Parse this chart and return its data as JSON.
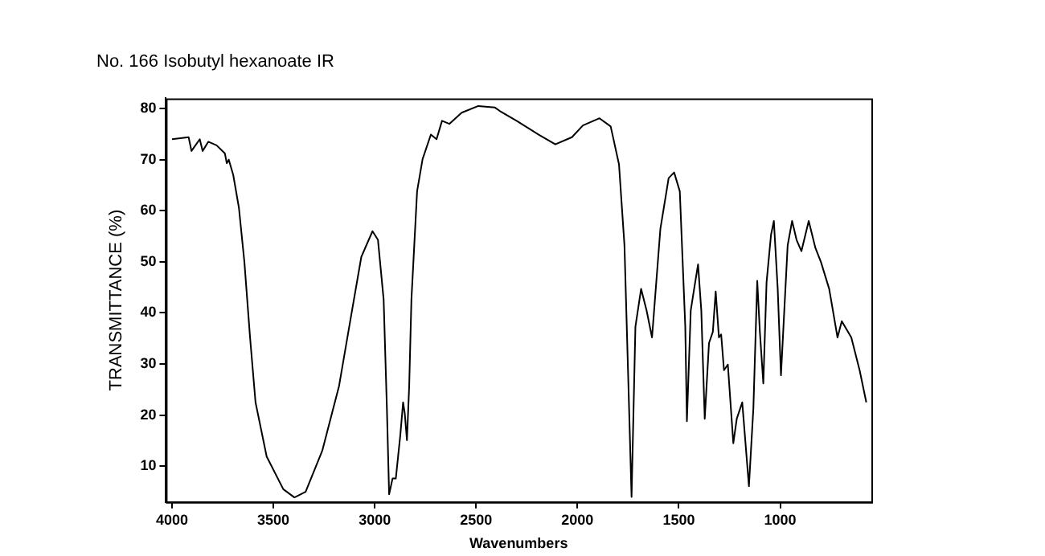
{
  "chart_data": {
    "type": "line",
    "title": "No. 166 Isobutyl hexanoate IR",
    "xlabel": "Wavenumbers",
    "ylabel": "TRANSMITTANCE (%)",
    "xlim": [
      4030,
      550
    ],
    "xticks": [
      4000,
      3500,
      3000,
      2500,
      2000,
      1500,
      1000
    ],
    "ylim": [
      3,
      82
    ],
    "yticks": [
      10,
      20,
      30,
      40,
      50,
      60,
      70,
      80
    ],
    "grid": false,
    "legend": false,
    "marker": "none",
    "line_style": "solid",
    "series": [
      {
        "color": "#000000",
        "x": [
          4000,
          3918,
          3904,
          3863,
          3849,
          3821,
          3780,
          3739,
          3730,
          3720,
          3698,
          3670,
          3643,
          3615,
          3588,
          3533,
          3451,
          3396,
          3341,
          3259,
          3176,
          3121,
          3066,
          3011,
          2984,
          2956,
          2940,
          2929,
          2912,
          2896,
          2874,
          2860,
          2852,
          2841,
          2830,
          2819,
          2791,
          2764,
          2723,
          2695,
          2668,
          2632,
          2571,
          2489,
          2407,
          2382,
          2300,
          2191,
          2109,
          2027,
          1973,
          1891,
          1836,
          1795,
          1768,
          1749,
          1733,
          1714,
          1686,
          1659,
          1632,
          1591,
          1550,
          1523,
          1495,
          1468,
          1460,
          1441,
          1422,
          1405,
          1389,
          1372,
          1351,
          1332,
          1318,
          1302,
          1291,
          1277,
          1258,
          1231,
          1214,
          1187,
          1154,
          1132,
          1113,
          1100,
          1083,
          1067,
          1045,
          1031,
          1012,
          996,
          963,
          941,
          919,
          895,
          859,
          826,
          799,
          758,
          717,
          696,
          649,
          608,
          575
        ],
        "values": [
          74,
          74.4,
          71.7,
          74,
          71.7,
          73.5,
          72.8,
          71.2,
          69.3,
          70,
          67,
          60.6,
          50,
          35.2,
          22.5,
          11.9,
          5.5,
          3.9,
          5,
          13,
          25.7,
          38.4,
          51,
          56,
          54.3,
          42.6,
          21.4,
          4.5,
          7.6,
          7.6,
          16,
          22.5,
          20.4,
          15.1,
          25.7,
          42.6,
          63.8,
          70.1,
          74.9,
          74,
          77.6,
          77,
          79.2,
          80.5,
          80.2,
          79.5,
          77.6,
          74.9,
          73,
          74.4,
          76.7,
          78.1,
          76.5,
          69.1,
          53.2,
          26.7,
          4,
          37.3,
          44.7,
          40.5,
          35.2,
          56.4,
          66.4,
          67.5,
          63.8,
          37.3,
          18.8,
          40.5,
          45.3,
          49.5,
          40.5,
          19.3,
          34.1,
          36.3,
          44.2,
          35.2,
          35.8,
          28.8,
          29.9,
          14.5,
          19.3,
          22.5,
          6.1,
          21.4,
          46.3,
          36.3,
          26.2,
          46,
          55.3,
          58,
          44.7,
          27.8,
          53.2,
          58,
          54.3,
          52.1,
          58,
          52.7,
          50,
          44.7,
          35.2,
          38.4,
          35.2,
          28.8,
          22.5
        ]
      }
    ]
  }
}
